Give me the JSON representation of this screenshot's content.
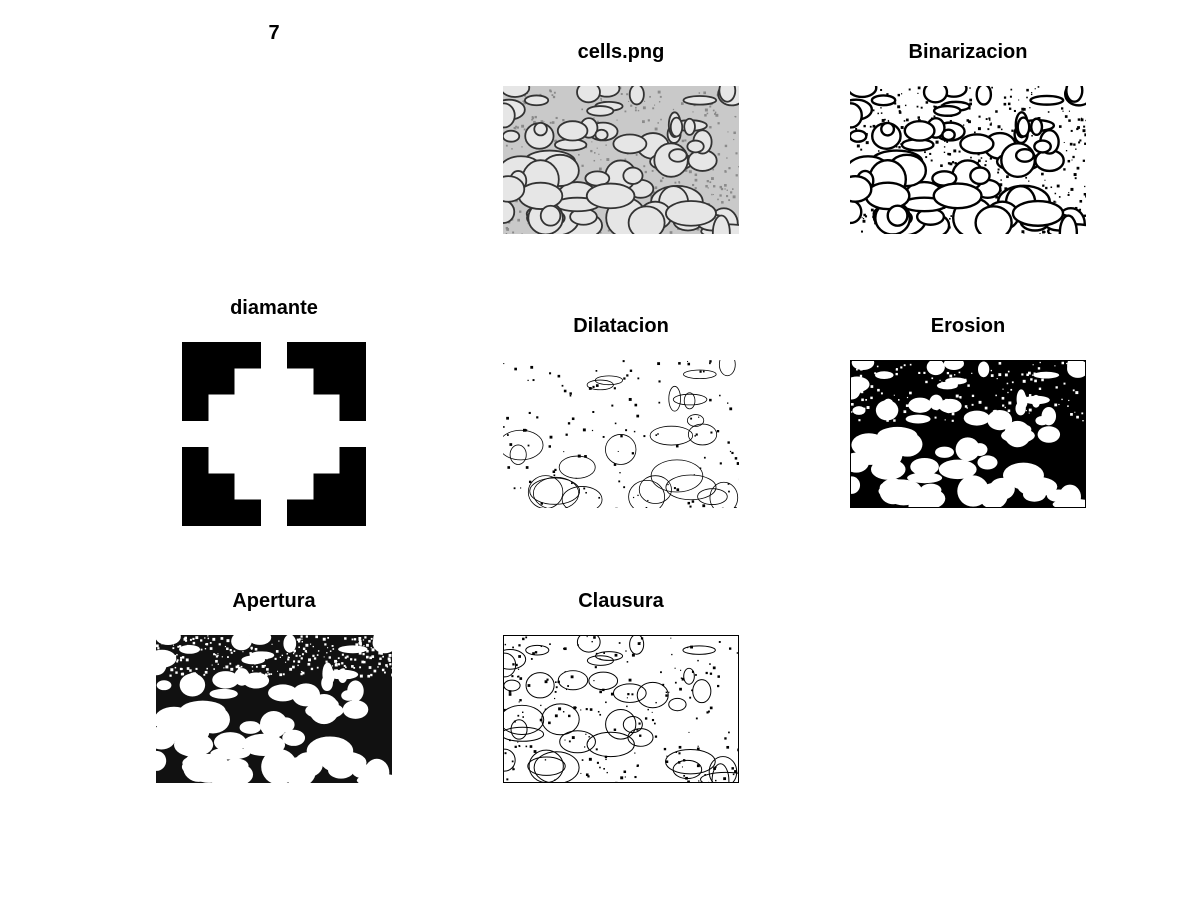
{
  "figure": {
    "label": "7",
    "colors": {
      "foreground": "#000000",
      "background": "#ffffff",
      "gray_tissue": "#b8b8b8"
    }
  },
  "panels": [
    {
      "key": "cells",
      "title": "cells.png",
      "style": "grayscale"
    },
    {
      "key": "binarizacion",
      "title": "Binarizacion",
      "style": "binary"
    },
    {
      "key": "diamante",
      "title": "diamante",
      "style": "structuring-element"
    },
    {
      "key": "dilatacion",
      "title": "Dilatacion",
      "style": "sparse"
    },
    {
      "key": "erosion",
      "title": "Erosion",
      "style": "dense"
    },
    {
      "key": "apertura",
      "title": "Apertura",
      "style": "dense-open"
    },
    {
      "key": "clausura",
      "title": "Clausura",
      "style": "sparse-closed"
    }
  ]
}
